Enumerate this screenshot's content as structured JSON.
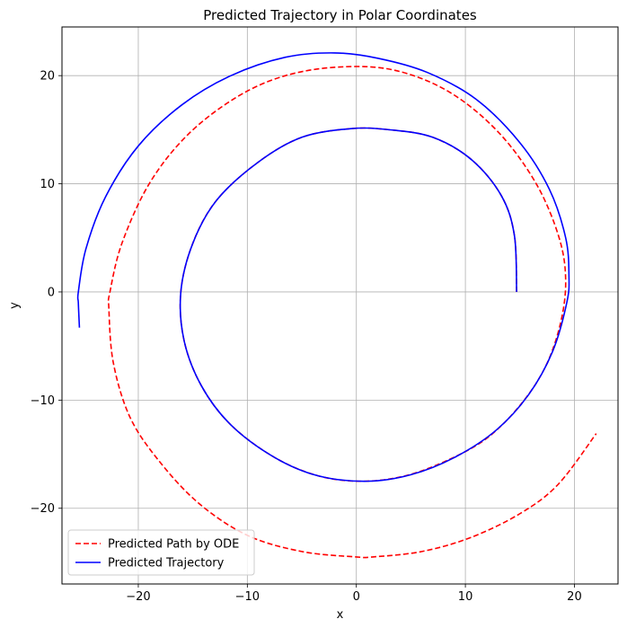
{
  "chart_data": {
    "type": "line",
    "title": "Predicted Trajectory in Polar Coordinates",
    "xlabel": "x",
    "ylabel": "y",
    "xlim": [
      -27.0,
      24.0
    ],
    "ylim": [
      -27.0,
      24.5
    ],
    "xticks": [
      -20,
      -10,
      0,
      10,
      20
    ],
    "yticks": [
      -20,
      -10,
      0,
      10,
      20
    ],
    "xtick_labels": [
      "−20",
      "−10",
      "0",
      "10",
      "20"
    ],
    "ytick_labels": [
      "−20",
      "−10",
      "0",
      "10",
      "20"
    ],
    "grid": true,
    "legend_position": "lower-left",
    "series": [
      {
        "name": "Predicted Path by ODE",
        "color": "#ff0000",
        "style": "dashed",
        "points": [
          [
            14.7,
            0.0
          ],
          [
            14.5,
            5.2
          ],
          [
            13.3,
            8.9
          ],
          [
            10.6,
            12.2
          ],
          [
            7.0,
            14.3
          ],
          [
            3.0,
            15.0
          ],
          [
            -0.5,
            15.1
          ],
          [
            -5.0,
            14.3
          ],
          [
            -9.0,
            12.0
          ],
          [
            -12.8,
            8.5
          ],
          [
            -15.0,
            4.5
          ],
          [
            -16.1,
            0.0
          ],
          [
            -15.8,
            -4.5
          ],
          [
            -14.2,
            -8.7
          ],
          [
            -11.5,
            -12.3
          ],
          [
            -7.5,
            -15.3
          ],
          [
            -3.5,
            -17.0
          ],
          [
            0.5,
            -17.5
          ],
          [
            4.5,
            -17.0
          ],
          [
            8.5,
            -15.5
          ],
          [
            12.0,
            -13.5
          ],
          [
            15.0,
            -10.5
          ],
          [
            17.3,
            -7.0
          ],
          [
            18.7,
            -3.0
          ],
          [
            19.2,
            1.0
          ],
          [
            18.6,
            5.0
          ],
          [
            16.5,
            10.0
          ],
          [
            13.0,
            14.8
          ],
          [
            8.5,
            18.5
          ],
          [
            3.5,
            20.5
          ],
          [
            -1.5,
            20.8
          ],
          [
            -6.5,
            20.0
          ],
          [
            -11.0,
            18.0
          ],
          [
            -15.5,
            14.5
          ],
          [
            -19.0,
            10.0
          ],
          [
            -21.5,
            4.5
          ],
          [
            -22.6,
            0.0
          ],
          [
            -22.7,
            -1.5
          ],
          [
            -22.3,
            -6.5
          ],
          [
            -20.8,
            -11.5
          ],
          [
            -18.2,
            -15.5
          ],
          [
            -14.5,
            -19.5
          ],
          [
            -10.0,
            -22.5
          ],
          [
            -5.0,
            -24.0
          ],
          [
            0.0,
            -24.5
          ],
          [
            1.5,
            -24.5
          ],
          [
            6.0,
            -24.0
          ],
          [
            10.5,
            -22.7
          ],
          [
            15.0,
            -20.5
          ],
          [
            18.5,
            -17.8
          ],
          [
            22.0,
            -13.1
          ]
        ]
      },
      {
        "name": "Predicted Trajectory",
        "color": "#0000ff",
        "style": "solid",
        "points": [
          [
            14.7,
            0.0
          ],
          [
            14.5,
            5.2
          ],
          [
            13.3,
            8.9
          ],
          [
            10.6,
            12.2
          ],
          [
            7.0,
            14.3
          ],
          [
            3.0,
            15.0
          ],
          [
            -0.5,
            15.1
          ],
          [
            -5.0,
            14.3
          ],
          [
            -9.0,
            12.0
          ],
          [
            -12.8,
            8.5
          ],
          [
            -15.0,
            4.5
          ],
          [
            -16.1,
            0.0
          ],
          [
            -15.8,
            -4.5
          ],
          [
            -14.2,
            -8.7
          ],
          [
            -11.5,
            -12.3
          ],
          [
            -7.5,
            -15.3
          ],
          [
            -3.5,
            -17.0
          ],
          [
            1.0,
            -17.5
          ],
          [
            5.0,
            -16.9
          ],
          [
            9.0,
            -15.3
          ],
          [
            12.8,
            -12.8
          ],
          [
            15.8,
            -9.5
          ],
          [
            18.0,
            -5.5
          ],
          [
            19.3,
            -1.0
          ],
          [
            19.5,
            1.5
          ],
          [
            19.2,
            5.0
          ],
          [
            17.7,
            9.5
          ],
          [
            15.0,
            13.8
          ],
          [
            11.0,
            17.8
          ],
          [
            6.5,
            20.3
          ],
          [
            2.0,
            21.6
          ],
          [
            -2.0,
            22.1
          ],
          [
            -6.5,
            21.7
          ],
          [
            -11.5,
            20.0
          ],
          [
            -16.0,
            17.3
          ],
          [
            -20.0,
            13.5
          ],
          [
            -23.0,
            8.8
          ],
          [
            -24.8,
            4.0
          ],
          [
            -25.5,
            0.0
          ],
          [
            -25.5,
            -1.0
          ],
          [
            -25.4,
            -3.3
          ]
        ]
      }
    ]
  }
}
